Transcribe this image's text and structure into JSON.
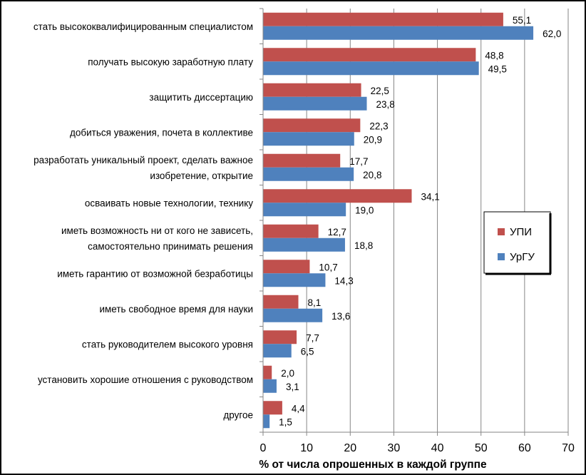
{
  "chart_data": {
    "type": "bar",
    "orientation": "horizontal",
    "title": "",
    "xlabel": "% от числа опрошенных в каждой группе",
    "ylabel": "",
    "xlim": [
      0,
      70
    ],
    "xticks": [
      0,
      10,
      20,
      30,
      40,
      50,
      60,
      70
    ],
    "grid": true,
    "legend_position": "right",
    "categories": [
      [
        "стать высококвалифицированным специалистом"
      ],
      [
        "получать высокую заработную плату"
      ],
      [
        "защитить диссертацию"
      ],
      [
        "добиться уважения, почета в коллективе"
      ],
      [
        "разработать уникальный проект, сделать важное",
        "изобретение, открытие"
      ],
      [
        "осваивать новые технологии, технику"
      ],
      [
        "иметь возможность ни от кого не зависеть,",
        "самостоятельно принимать решения"
      ],
      [
        "иметь гарантию от возможной безработицы"
      ],
      [
        "иметь свободное время для науки"
      ],
      [
        "стать руководителем высокого уровня"
      ],
      [
        "установить хорошие отношения с руководством"
      ],
      [
        "другое"
      ]
    ],
    "series": [
      {
        "name": "УПИ",
        "color": "#c0504d",
        "values": [
          55.1,
          48.8,
          22.5,
          22.3,
          17.7,
          34.1,
          12.7,
          10.7,
          8.1,
          7.7,
          2.0,
          4.4
        ],
        "labels": [
          "55,1",
          "48,8",
          "22,5",
          "22,3",
          "17,7",
          "34,1",
          "12,7",
          "10,7",
          "8,1",
          "7,7",
          "2,0",
          "4,4"
        ]
      },
      {
        "name": "УрГУ",
        "color": "#4f81bd",
        "values": [
          62.0,
          49.5,
          23.8,
          20.9,
          20.8,
          19.0,
          18.8,
          14.3,
          13.6,
          6.5,
          3.1,
          1.5
        ],
        "labels": [
          "62,0",
          "49,5",
          "23,8",
          "20,9",
          "20,8",
          "19,0",
          "18,8",
          "14,3",
          "13,6",
          "6,5",
          "3,1",
          "1,5"
        ]
      }
    ]
  }
}
